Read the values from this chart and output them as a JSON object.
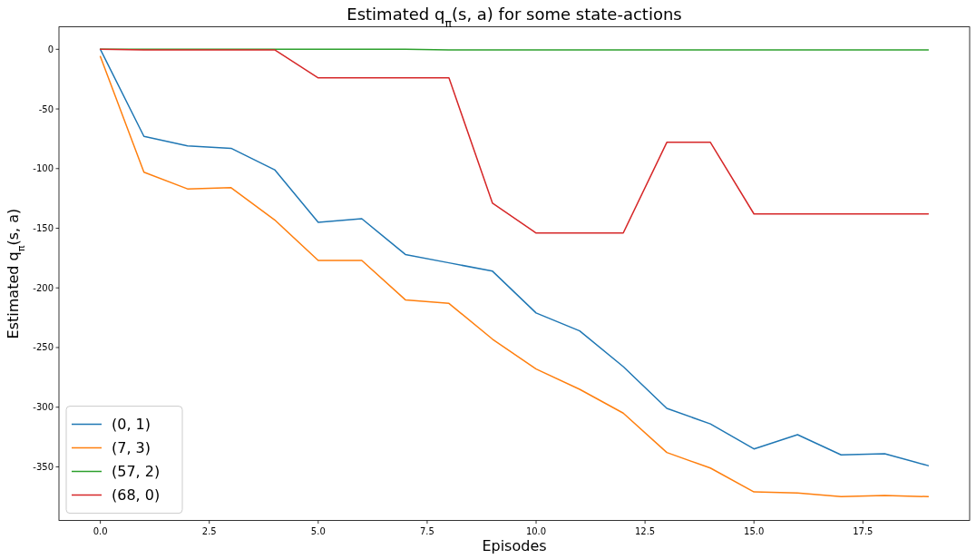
{
  "chart_data": {
    "type": "line",
    "title": "Estimated q$_{π}$(s, a) for some state-actions",
    "xlabel": "Episodes",
    "ylabel": "Estimated q$_{π}$(s, a)",
    "x": [
      0,
      1,
      2,
      3,
      4,
      5,
      6,
      7,
      8,
      9,
      10,
      11,
      12,
      13,
      14,
      15,
      16,
      17,
      18,
      19
    ],
    "xlim": [
      -0.95,
      19.95
    ],
    "xticks": [
      {
        "value": 0,
        "label": "0.0"
      },
      {
        "value": 2.5,
        "label": "2.5"
      },
      {
        "value": 5,
        "label": "5.0"
      },
      {
        "value": 7.5,
        "label": "7.5"
      },
      {
        "value": 10,
        "label": "10.0"
      },
      {
        "value": 12.5,
        "label": "12.5"
      },
      {
        "value": 15,
        "label": "15.0"
      },
      {
        "value": 17.5,
        "label": "17.5"
      }
    ],
    "ylim": [
      -395,
      18.8
    ],
    "yticks": [
      0,
      -50,
      -100,
      -150,
      -200,
      -250,
      -300,
      -350
    ],
    "legend": "bottom left",
    "grid": false,
    "series": [
      {
        "name": "(0, 1)",
        "color": "#1f77b4",
        "values": [
          0,
          -73,
          -81,
          -83,
          -101,
          -145,
          -142,
          -172,
          -179,
          -186,
          -221,
          -236,
          -266,
          -301,
          -314,
          -335,
          -323,
          -340,
          -339,
          -349
        ]
      },
      {
        "name": "(7, 3)",
        "color": "#ff7f0e",
        "values": [
          -6,
          -103,
          -117,
          -116,
          -143,
          -177,
          -177,
          -210,
          -213,
          -243,
          -268,
          -285,
          -305,
          -338,
          -351,
          -371,
          -372,
          -375,
          -374,
          -375
        ]
      },
      {
        "name": "(57, 2)",
        "color": "#2ca02c",
        "values": [
          0,
          0,
          0,
          0,
          0,
          0,
          0,
          0,
          -0.5,
          -0.5,
          -0.5,
          -0.5,
          -0.5,
          -0.5,
          -0.5,
          -0.5,
          -0.5,
          -0.5,
          -0.5,
          -0.5
        ]
      },
      {
        "name": "(68, 0)",
        "color": "#d62728",
        "values": [
          0,
          -0.5,
          -0.5,
          -0.5,
          -0.5,
          -24,
          -24,
          -24,
          -24,
          -129,
          -154,
          -154,
          -154,
          -78,
          -78,
          -138,
          -138,
          -138,
          -138,
          -138
        ]
      }
    ]
  }
}
